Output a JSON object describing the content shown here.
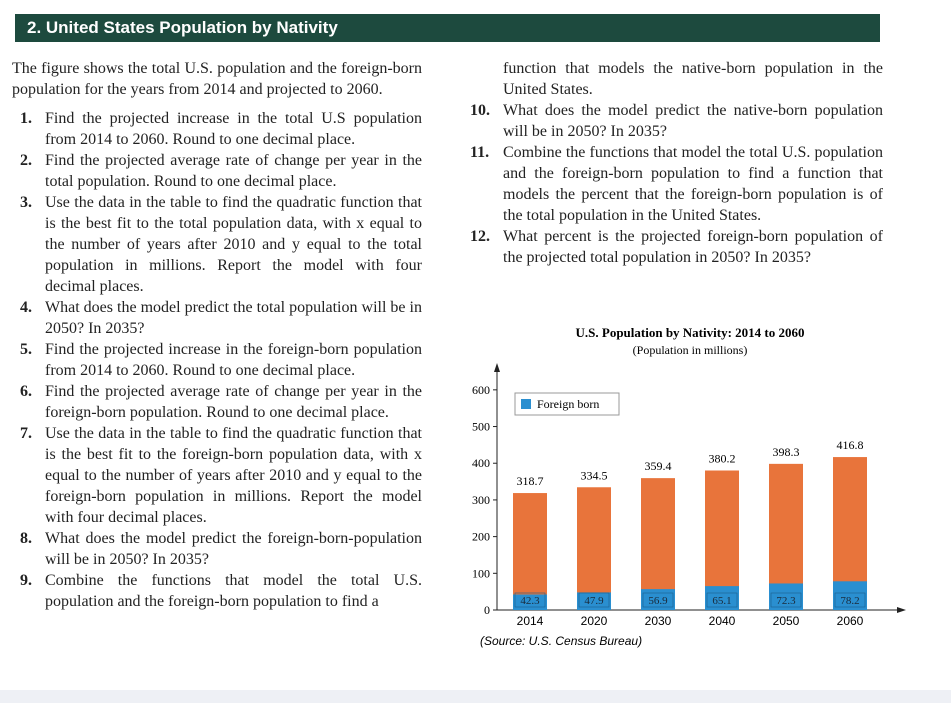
{
  "header": {
    "title": "2. United States Population by Nativity"
  },
  "intro": "The figure shows the total U.S. population and the foreign-born population for the years from 2014 and projected to 2060.",
  "problems": [
    {
      "number": "1.",
      "text": "Find the projected increase in the total U.S population from 2014 to 2060. Round to one decimal place."
    },
    {
      "number": "2.",
      "text": "Find the projected average rate of change per year in the total population. Round to one decimal place."
    },
    {
      "number": "3.",
      "text": "Use the data in the table to find the quadratic function that is the best fit to the total population data, with x equal to the number of years after 2010 and y equal to the total population in millions. Report the model with four decimal places."
    },
    {
      "number": "4.",
      "text": "What does the model predict the total population will be in 2050? In 2035?"
    },
    {
      "number": "5.",
      "text": "Find the projected increase in the foreign-born population from 2014 to 2060. Round to one decimal place."
    },
    {
      "number": "6.",
      "text": "Find the projected average rate of change per year in the foreign-born population. Round to one decimal place."
    },
    {
      "number": "7.",
      "text": "Use the data in the table to find the quadratic function that is the best fit to the foreign-born population data, with x equal to the number of years after 2010 and y equal to the foreign-born population in millions. Report the model with four decimal places."
    },
    {
      "number": "8.",
      "text": "What does the model predict the foreign-born-population will be in 2050? In 2035?"
    },
    {
      "number": "9.",
      "text": "Combine the functions that model the total U.S. population and the foreign-born population to find a",
      "continued": "function that models the native-born population in the United States."
    },
    {
      "number": "10.",
      "text": "What does the model predict the native-born population will be in 2050? In 2035?"
    },
    {
      "number": "11.",
      "text": "Combine the functions that model the total U.S. population and the foreign-born population to find a function that models the percent that the foreign-born population is of the total population in the United States."
    },
    {
      "number": "12.",
      "text": "What percent is the projected foreign-born population of the projected total population in 2050? In 2035?"
    }
  ],
  "chart_data": {
    "type": "bar",
    "title": "U.S. Population by Nativity: 2014 to 2060",
    "subtitle": "(Population in millions)",
    "source": "(Source: U.S. Census Bureau)",
    "categories": [
      "2014",
      "2020",
      "2030",
      "2040",
      "2050",
      "2060"
    ],
    "series": [
      {
        "color": "#e8743b",
        "values": [
          318.7,
          334.5,
          359.4,
          380.2,
          398.3,
          416.8
        ]
      },
      {
        "name": "Foreign born",
        "color": "#2a8fd0",
        "values": [
          42.3,
          47.9,
          56.9,
          65.1,
          72.3,
          78.2
        ]
      }
    ],
    "ylim": [
      0,
      650
    ],
    "yticks": [
      0,
      100,
      200,
      300,
      400,
      500,
      600
    ],
    "legend": "top-left"
  }
}
